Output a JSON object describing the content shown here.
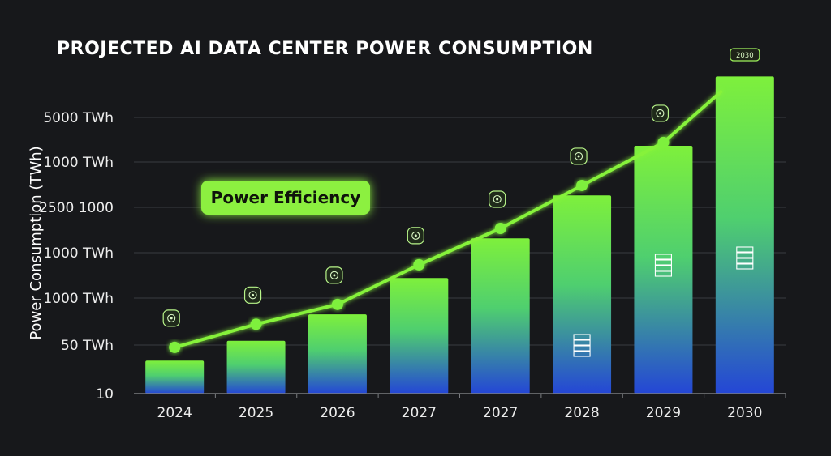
{
  "chart_data": {
    "type": "bar",
    "title": "PROJECTED AI DATA CENTER POWER CONSUMPTION",
    "ylabel": "Power Consumption (TWh)",
    "xlabel": "",
    "y_tick_labels": [
      "5000 TWh",
      "1000 TWh",
      "2500 1000",
      "1000 TWh",
      "1000 TWh",
      "50 TWh",
      "10"
    ],
    "categories": [
      "2024",
      "2025",
      "2026",
      "2027",
      "2027",
      "2028",
      "2029",
      "2030"
    ],
    "values": [
      50,
      80,
      120,
      175,
      235,
      300,
      375,
      480
    ],
    "ylim": [
      0,
      500
    ],
    "trend_line": {
      "name": "Power Efficiency",
      "values": [
        70,
        105,
        135,
        195,
        250,
        315,
        380,
        445
      ]
    },
    "annotations": [
      {
        "text": "Power Efficiency",
        "style": "green-badge"
      },
      {
        "text": "2030",
        "style": "green-chip-top"
      }
    ],
    "grid": true,
    "colors": {
      "background": "#17181b",
      "bar_top": "#7ef03c",
      "bar_bottom": "#2446d6",
      "line": "#86f23a",
      "marker": "#7ef03c",
      "grid": "#3a3c40",
      "badge": "#8cf03f"
    },
    "icons": [
      "chip-icon",
      "gauge-icon",
      "gauge-icon",
      "network-icon",
      "cloud-icon",
      "brain-icon",
      "gear-icon",
      "chip-icon"
    ]
  }
}
